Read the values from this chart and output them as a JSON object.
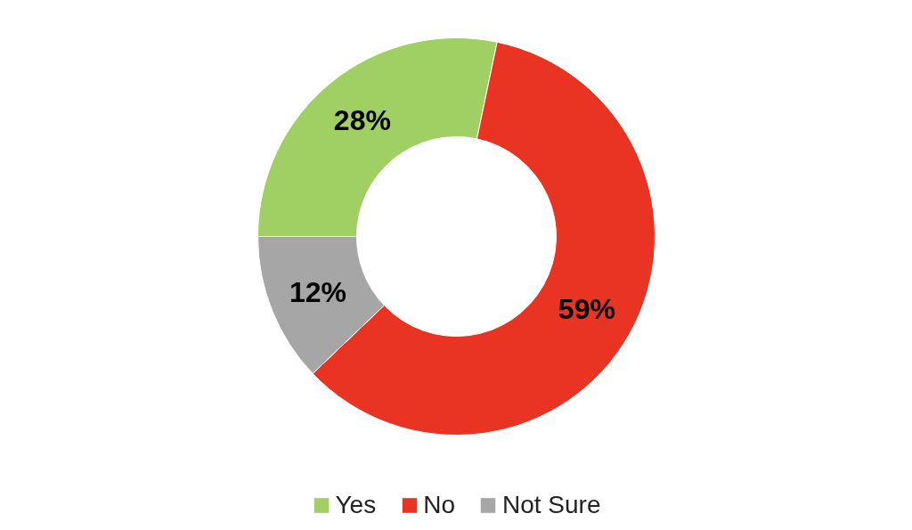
{
  "chart_data": {
    "type": "donut",
    "categories": [
      "Yes",
      "No",
      "Not Sure"
    ],
    "values": [
      28,
      59,
      12
    ],
    "colors": [
      "#a0cf63",
      "#e93323",
      "#a6a6a6"
    ],
    "value_labels": [
      "28%",
      "59%",
      "12%"
    ],
    "legend": "bottom"
  }
}
